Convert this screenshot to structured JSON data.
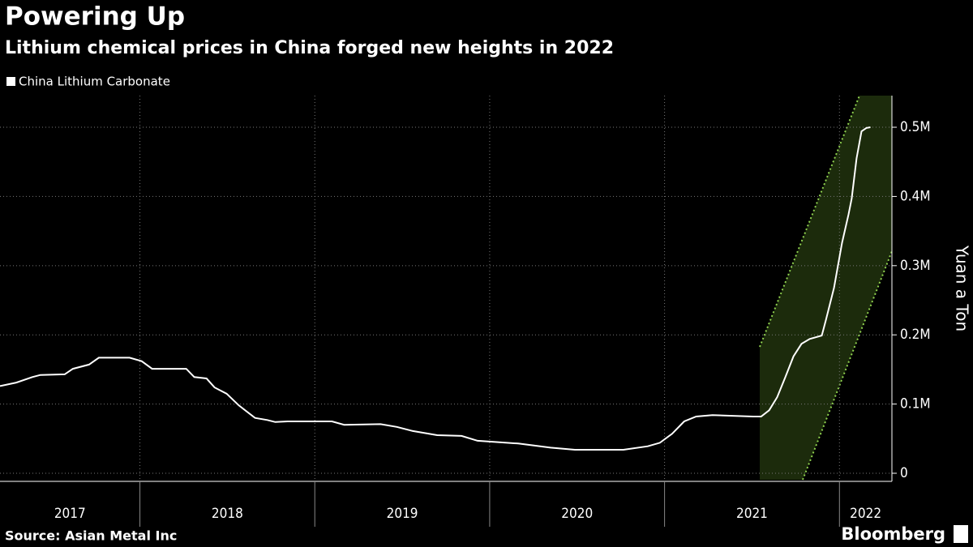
{
  "chart_data": {
    "type": "line",
    "title": "Powering Up",
    "subtitle": "Lithium chemical prices in China forged new heights in 2022",
    "y_label": "Yuan a Ton",
    "source": "Source: Asian Metal Inc",
    "brand": "Bloomberg",
    "x": [
      2017.2,
      2017.293,
      2017.385,
      2017.431,
      2017.57,
      2017.617,
      2017.709,
      2017.765,
      2017.941,
      2018.01,
      2018.07,
      2018.265,
      2018.311,
      2018.381,
      2018.427,
      2018.496,
      2018.566,
      2018.658,
      2018.728,
      2018.774,
      2018.844,
      2019.098,
      2019.168,
      2019.376,
      2019.469,
      2019.561,
      2019.7,
      2019.839,
      2019.931,
      2020.163,
      2020.348,
      2020.487,
      2020.765,
      2020.904,
      2020.973,
      2021.043,
      2021.112,
      2021.181,
      2021.274,
      2021.506,
      2021.552,
      2021.598,
      2021.644,
      2021.691,
      2021.737,
      2021.783,
      2021.83,
      2021.899,
      2021.922,
      2021.969,
      2022.015,
      2022.052,
      2022.07,
      2022.098,
      2022.126,
      2022.154,
      2022.177
    ],
    "series": [
      {
        "name": "China Lithium Carbonate",
        "color": "#ffffff",
        "values": [
          126000,
          131000,
          139000,
          142000,
          143000,
          151000,
          157000,
          167000,
          167000,
          162000,
          151000,
          151000,
          139000,
          137000,
          124000,
          115000,
          98000,
          80000,
          77000,
          74000,
          75000,
          75000,
          70000,
          71000,
          67000,
          61000,
          55000,
          54000,
          47000,
          43000,
          37000,
          34000,
          34000,
          39000,
          44000,
          57000,
          75000,
          82000,
          84000,
          82000,
          82000,
          91000,
          110000,
          139000,
          169000,
          187000,
          194000,
          199000,
          221000,
          268000,
          333000,
          374000,
          397000,
          455000,
          494000,
          499000,
          500000
        ]
      }
    ],
    "xlim": [
      2017.2,
      2022.3
    ],
    "xticks": [
      2017,
      2018,
      2019,
      2020,
      2021,
      2022
    ],
    "ylim": [
      -11700,
      545700
    ],
    "yticks": [
      0,
      {
        "value": 100000,
        "label": "0.1M"
      },
      {
        "value": 200000,
        "label": "0.2M"
      },
      {
        "value": 300000,
        "label": "0.3M"
      },
      {
        "value": 400000,
        "label": "0.4M"
      },
      {
        "value": 500000,
        "label": "0.5M"
      }
    ],
    "grid": true
  }
}
